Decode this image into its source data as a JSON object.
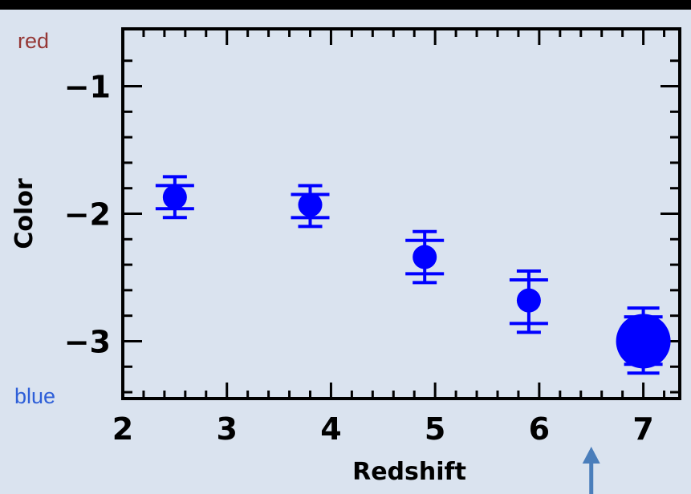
{
  "chart_data": {
    "type": "scatter",
    "xlabel": "Redshift",
    "ylabel": "Color",
    "xlim": [
      2,
      7.35
    ],
    "ylim": [
      -3.45,
      -0.55
    ],
    "x_ticks": [
      2,
      3,
      4,
      5,
      6,
      7
    ],
    "x_tick_labels": [
      "2",
      "3",
      "4",
      "5",
      "6",
      "7"
    ],
    "y_ticks": [
      -1,
      -2,
      -3
    ],
    "y_tick_labels": [
      "−1",
      "−2",
      "−3"
    ],
    "grid": false,
    "series": [
      {
        "points": [
          {
            "x": 2.5,
            "y": -1.87,
            "err_low": -2.03,
            "err_high": -1.71
          },
          {
            "x": 3.8,
            "y": -1.93,
            "err_low": -2.1,
            "err_high": -1.78
          },
          {
            "x": 4.9,
            "y": -2.34,
            "err_low": -2.54,
            "err_high": -2.14
          },
          {
            "x": 5.9,
            "y": -2.68,
            "err_low": -2.93,
            "err_high": -2.45
          },
          {
            "x": 7.0,
            "y": -3.0,
            "err_low": -3.25,
            "err_high": -2.74
          }
        ],
        "color": "#0000ff"
      }
    ],
    "annotations": {
      "top_left": "red",
      "bottom_left": "blue",
      "arrow_at_x": 6.5
    }
  },
  "colors": {
    "background": "#dae3ef",
    "data": "#0000ff",
    "red_label": "#953735",
    "blue_label": "#2e5fd8",
    "arrow": "#4a7ebb"
  }
}
